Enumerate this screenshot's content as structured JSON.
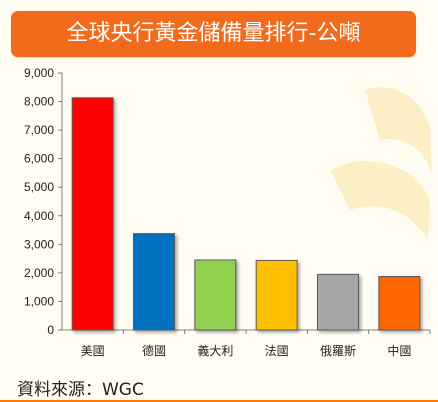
{
  "title": "全球央行黃金儲備量排行-公噸",
  "source": "資料來源：WGC",
  "colors": {
    "title_bg": "#f26a1b",
    "background": "#fffdf2"
  },
  "chart_data": {
    "type": "bar",
    "title": "全球央行黃金儲備量排行-公噸",
    "categories": [
      "美國",
      "德國",
      "義大利",
      "法國",
      "俄羅斯",
      "中國"
    ],
    "values": [
      8133,
      3375,
      2452,
      2436,
      1948,
      1874
    ],
    "colors": [
      "#ff0000",
      "#0070c0",
      "#92d050",
      "#ffc000",
      "#a6a6a6",
      "#ff6600"
    ],
    "yticks": [
      "0",
      "1,000",
      "2,000",
      "3,000",
      "4,000",
      "5,000",
      "6,000",
      "7,000",
      "8,000",
      "9,000"
    ],
    "ylim": [
      0,
      9000
    ],
    "xlabel": "",
    "ylabel": "",
    "grid": false,
    "legend": "none"
  }
}
